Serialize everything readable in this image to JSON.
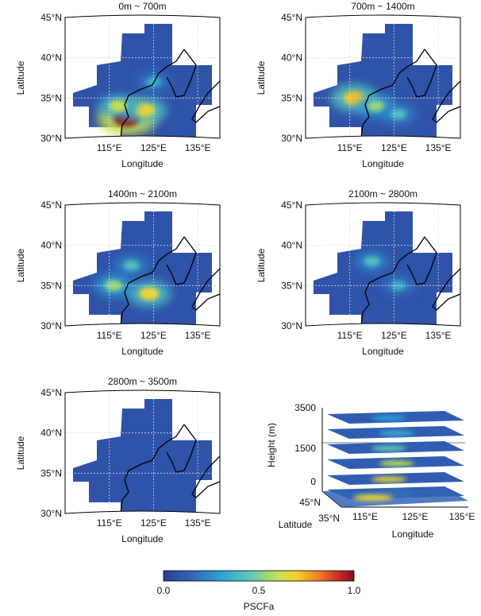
{
  "chart_data": [
    {
      "type": "heatmap",
      "title": "0m ~ 700m",
      "xlabel": "Longitude",
      "ylabel": "Latitude",
      "x_ticks": [
        "115°E",
        "125°E",
        "135°E"
      ],
      "y_ticks": [
        "30°N",
        "35°N",
        "40°N",
        "45°N"
      ],
      "xlim": [
        105,
        140
      ],
      "ylim": [
        30,
        45
      ],
      "hotspots": [
        {
          "lon": 119,
          "lat": 32.5,
          "value": 0.95
        },
        {
          "lon": 123,
          "lat": 33.5,
          "value": 0.6
        },
        {
          "lon": 117,
          "lat": 34,
          "value": 0.5
        },
        {
          "lon": 125,
          "lat": 37,
          "value": 0.3
        }
      ]
    },
    {
      "type": "heatmap",
      "title": "700m ~ 1400m",
      "xlabel": "Longitude",
      "ylabel": "Latitude",
      "x_ticks": [
        "115°E",
        "125°E",
        "135°E"
      ],
      "y_ticks": [
        "30°N",
        "35°N",
        "40°N",
        "45°N"
      ],
      "xlim": [
        105,
        140
      ],
      "ylim": [
        30,
        45
      ],
      "hotspots": [
        {
          "lon": 116,
          "lat": 35,
          "value": 0.65
        },
        {
          "lon": 121,
          "lat": 34,
          "value": 0.45
        },
        {
          "lon": 126,
          "lat": 33,
          "value": 0.35
        }
      ]
    },
    {
      "type": "heatmap",
      "title": "1400m ~ 2100m",
      "xlabel": "Longitude",
      "ylabel": "Latitude",
      "x_ticks": [
        "115°E",
        "125°E",
        "135°E"
      ],
      "y_ticks": [
        "30°N",
        "35°N",
        "40°N",
        "45°N"
      ],
      "xlim": [
        105,
        140
      ],
      "ylim": [
        30,
        45
      ],
      "hotspots": [
        {
          "lon": 124,
          "lat": 34,
          "value": 0.6
        },
        {
          "lon": 116,
          "lat": 35,
          "value": 0.45
        },
        {
          "lon": 120,
          "lat": 37.5,
          "value": 0.35
        }
      ]
    },
    {
      "type": "heatmap",
      "title": "2100m ~ 2800m",
      "xlabel": "Longitude",
      "ylabel": "Latitude",
      "x_ticks": [
        "115°E",
        "125°E",
        "135°E"
      ],
      "y_ticks": [
        "30°N",
        "35°N",
        "40°N",
        "45°N"
      ],
      "xlim": [
        105,
        140
      ],
      "ylim": [
        30,
        45
      ],
      "hotspots": [
        {
          "lon": 120,
          "lat": 38,
          "value": 0.35
        },
        {
          "lon": 126,
          "lat": 35,
          "value": 0.3
        }
      ]
    },
    {
      "type": "heatmap",
      "title": "2800m ~ 3500m",
      "xlabel": "Longitude",
      "ylabel": "Latitude",
      "x_ticks": [
        "115°E",
        "125°E",
        "135°E"
      ],
      "y_ticks": [
        "30°N",
        "35°N",
        "40°N",
        "45°N"
      ],
      "xlim": [
        105,
        140
      ],
      "ylim": [
        30,
        45
      ],
      "hotspots": []
    },
    {
      "type": "heatmap",
      "title": "",
      "xlabel": "Longitude",
      "ylabel": "Latitude",
      "zlabel": "Height (m)",
      "x_ticks": [
        "115°E",
        "125°E",
        "135°E"
      ],
      "y_ticks": [
        "35°N",
        "45°N"
      ],
      "z_ticks": [
        "3500",
        "1500",
        "0"
      ]
    }
  ],
  "colorbar": {
    "label": "PSCFa",
    "ticks": [
      "0.0",
      "0.5",
      "1.0"
    ],
    "range": [
      0,
      1
    ],
    "colormap": [
      "#2c3a96",
      "#3166b8",
      "#2fa0d6",
      "#5cc8b8",
      "#c4e052",
      "#f5d02e",
      "#ee7a21",
      "#c4252a",
      "#7d1010"
    ]
  }
}
